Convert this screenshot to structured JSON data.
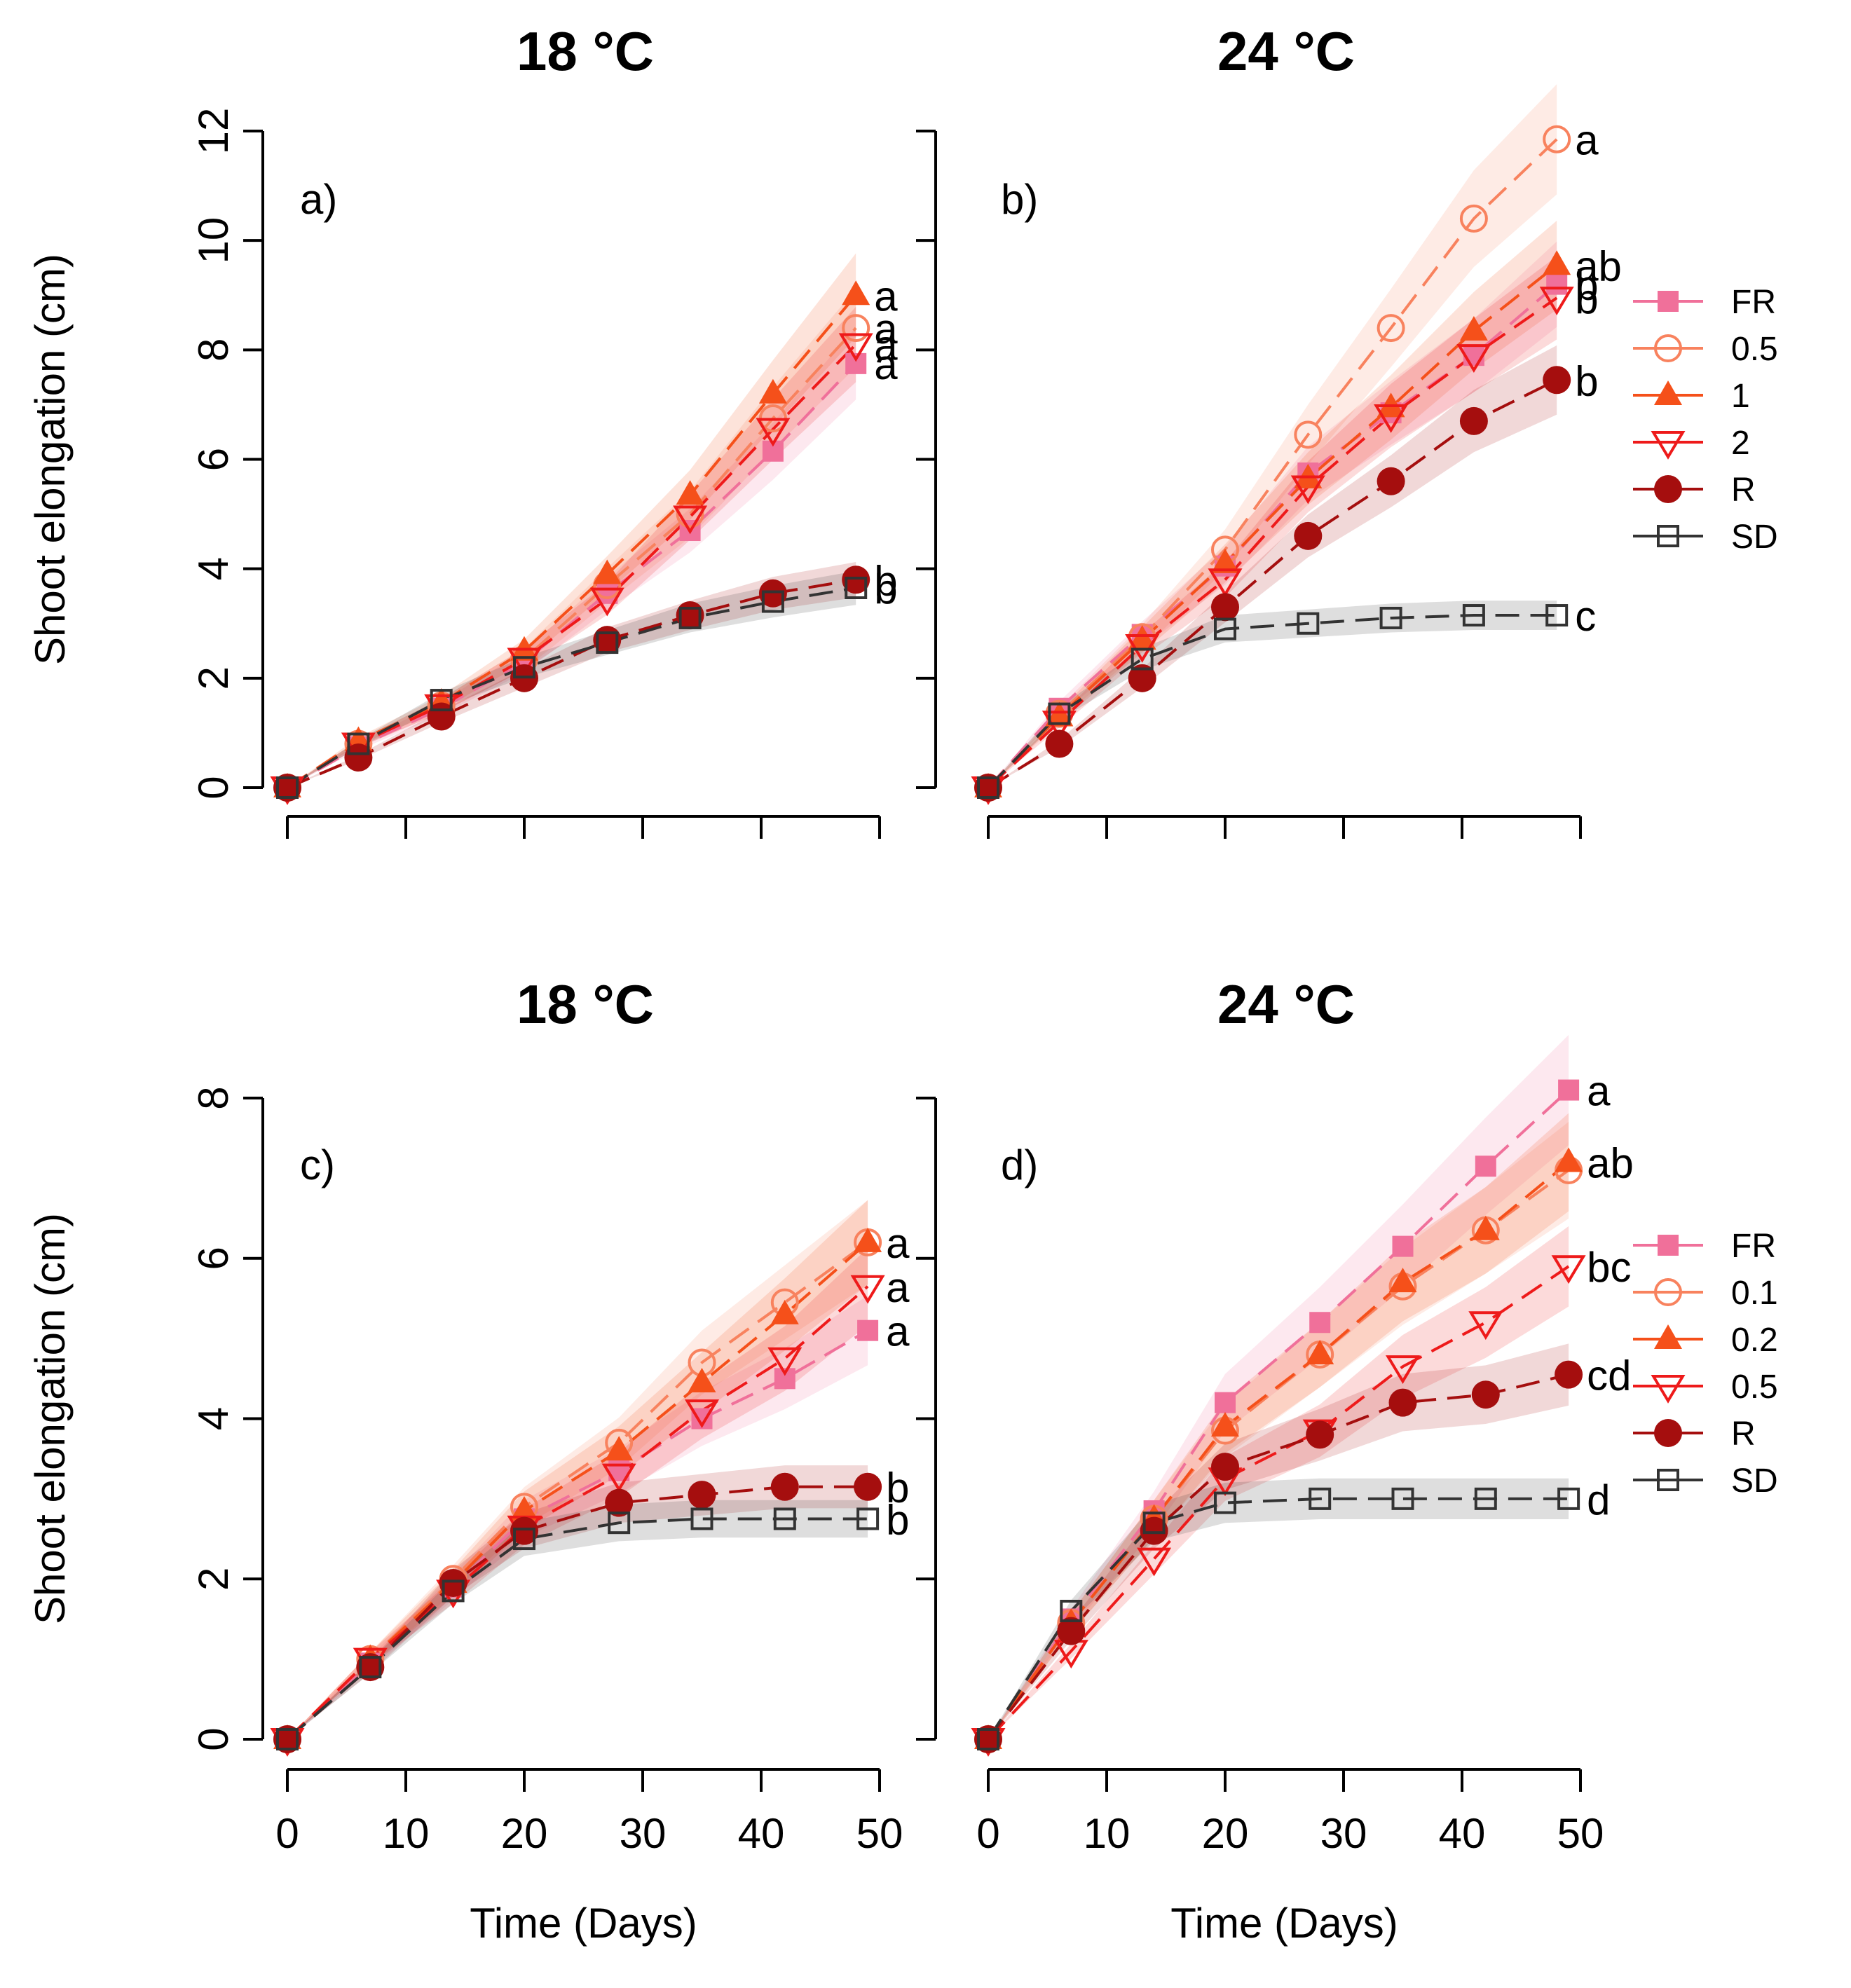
{
  "colors": {
    "FR": "#f0709a",
    "0.5": "#f8825e",
    "1": "#f5501a",
    "2": "#ee1a1a",
    "R": "#a50e0e",
    "SD": "#333333",
    "0.1": "#f8825e",
    "0.2": "#f5501a",
    "0.5_red": "#ee1a1a"
  },
  "chart_data": [
    {
      "type": "line",
      "panel": "a)",
      "title": "18 °C",
      "xlabel": "",
      "ylabel": "Shoot elongation (cm)",
      "xlim": [
        0,
        50
      ],
      "ylim": [
        0,
        12
      ],
      "yticks": [
        0,
        2,
        4,
        6,
        8,
        10,
        12
      ],
      "xticks": [
        0,
        10,
        20,
        30,
        40,
        50
      ],
      "x": [
        0,
        6,
        13,
        20,
        27,
        34,
        41,
        48
      ],
      "legend": false,
      "series": [
        {
          "name": "FR",
          "color": "#f0709a",
          "marker": "square-filled",
          "letter": "a",
          "values": [
            0,
            0.75,
            1.45,
            2.3,
            3.55,
            4.7,
            6.15,
            7.75
          ]
        },
        {
          "name": "0.5",
          "color": "#f8825e",
          "marker": "circle-open",
          "letter": "a",
          "values": [
            0,
            0.8,
            1.5,
            2.35,
            3.7,
            5.0,
            6.75,
            8.4
          ]
        },
        {
          "name": "1",
          "color": "#f5501a",
          "marker": "triangle-filled",
          "letter": "a",
          "values": [
            0,
            0.85,
            1.55,
            2.5,
            3.9,
            5.35,
            7.2,
            9.0
          ]
        },
        {
          "name": "2",
          "color": "#ee1a1a",
          "marker": "triangle-down-open",
          "letter": "a",
          "values": [
            0,
            0.8,
            1.5,
            2.35,
            3.45,
            4.95,
            6.55,
            8.1
          ]
        },
        {
          "name": "R",
          "color": "#a50e0e",
          "marker": "circle-filled",
          "letter": "b",
          "values": [
            0,
            0.55,
            1.3,
            2.0,
            2.7,
            3.15,
            3.55,
            3.8
          ]
        },
        {
          "name": "SD",
          "color": "#333333",
          "marker": "square-open",
          "letter": "b",
          "values": [
            0,
            0.8,
            1.6,
            2.2,
            2.65,
            3.1,
            3.4,
            3.65
          ]
        }
      ]
    },
    {
      "type": "line",
      "panel": "b)",
      "title": "24 °C",
      "xlabel": "",
      "ylabel": "",
      "xlim": [
        0,
        50
      ],
      "ylim": [
        0,
        12
      ],
      "yticks": [
        0,
        2,
        4,
        6,
        8,
        10,
        12
      ],
      "xticks": [
        0,
        10,
        20,
        30,
        40,
        50
      ],
      "x": [
        0,
        6,
        13,
        20,
        27,
        34,
        41,
        48
      ],
      "legend": true,
      "series": [
        {
          "name": "FR",
          "color": "#f0709a",
          "marker": "square-filled",
          "letter": "b",
          "values": [
            0,
            1.45,
            2.8,
            4.05,
            5.75,
            6.85,
            7.9,
            9.2
          ]
        },
        {
          "name": "0.5",
          "color": "#f8825e",
          "marker": "circle-open",
          "letter": "a",
          "values": [
            0,
            1.35,
            2.75,
            4.35,
            6.45,
            8.4,
            10.4,
            11.85
          ]
        },
        {
          "name": "1",
          "color": "#f5501a",
          "marker": "triangle-filled",
          "letter": "ab",
          "values": [
            0,
            1.3,
            2.7,
            4.1,
            5.65,
            6.95,
            8.35,
            9.55
          ]
        },
        {
          "name": "2",
          "color": "#ee1a1a",
          "marker": "triangle-down-open",
          "letter": "b",
          "values": [
            0,
            1.2,
            2.6,
            3.8,
            5.5,
            6.8,
            7.9,
            8.95
          ]
        },
        {
          "name": "R",
          "color": "#a50e0e",
          "marker": "circle-filled",
          "letter": "b",
          "values": [
            0,
            0.8,
            2.0,
            3.3,
            4.6,
            5.6,
            6.7,
            7.45
          ]
        },
        {
          "name": "SD",
          "color": "#333333",
          "marker": "square-open",
          "letter": "c",
          "values": [
            0,
            1.35,
            2.35,
            2.9,
            3.0,
            3.1,
            3.15,
            3.15
          ]
        }
      ]
    },
    {
      "type": "line",
      "panel": "c)",
      "title": "18 °C",
      "xlabel": "Time (Days)",
      "ylabel": "Shoot elongation (cm)",
      "xlim": [
        0,
        50
      ],
      "ylim": [
        0,
        8
      ],
      "yticks": [
        0,
        2,
        4,
        6,
        8
      ],
      "xticks": [
        0,
        10,
        20,
        30,
        40,
        50
      ],
      "x": [
        0,
        7,
        14,
        20,
        28,
        35,
        42,
        49
      ],
      "legend": false,
      "series": [
        {
          "name": "FR",
          "color": "#f0709a",
          "marker": "square-filled",
          "letter": "a",
          "values": [
            0,
            0.95,
            1.9,
            2.75,
            3.35,
            4.0,
            4.5,
            5.1
          ]
        },
        {
          "name": "0.1",
          "color": "#f8825e",
          "marker": "circle-open",
          "letter": "",
          "values": [
            0,
            1.0,
            2.0,
            2.9,
            3.7,
            4.7,
            5.45,
            6.2
          ]
        },
        {
          "name": "0.2",
          "color": "#f5501a",
          "marker": "triangle-filled",
          "letter": "a",
          "values": [
            0,
            1.0,
            1.95,
            2.85,
            3.6,
            4.45,
            5.3,
            6.2
          ]
        },
        {
          "name": "0.5",
          "color": "#ee1a1a",
          "marker": "triangle-down-open",
          "letter": "a",
          "values": [
            0,
            1.0,
            1.85,
            2.65,
            3.3,
            4.1,
            4.75,
            5.65
          ]
        },
        {
          "name": "R",
          "color": "#a50e0e",
          "marker": "circle-filled",
          "letter": "b",
          "values": [
            0,
            0.9,
            1.95,
            2.6,
            2.95,
            3.05,
            3.15,
            3.15
          ]
        },
        {
          "name": "SD",
          "color": "#333333",
          "marker": "square-open",
          "letter": "b",
          "values": [
            0,
            0.9,
            1.85,
            2.5,
            2.7,
            2.75,
            2.75,
            2.75
          ]
        }
      ]
    },
    {
      "type": "line",
      "panel": "d)",
      "title": "24 °C",
      "xlabel": "Time (Days)",
      "ylabel": "",
      "xlim": [
        0,
        50
      ],
      "ylim": [
        0,
        8
      ],
      "yticks": [
        0,
        2,
        4,
        6,
        8
      ],
      "xticks": [
        0,
        10,
        20,
        30,
        40,
        50
      ],
      "x": [
        0,
        7,
        14,
        20,
        28,
        35,
        42,
        49
      ],
      "legend": true,
      "series": [
        {
          "name": "FR",
          "color": "#f0709a",
          "marker": "square-filled",
          "letter": "a",
          "values": [
            0,
            1.5,
            2.85,
            4.2,
            5.2,
            6.15,
            7.15,
            8.1
          ]
        },
        {
          "name": "0.1",
          "color": "#f8825e",
          "marker": "circle-open",
          "letter": "",
          "values": [
            0,
            1.45,
            2.75,
            3.85,
            4.8,
            5.65,
            6.35,
            7.1
          ]
        },
        {
          "name": "0.2",
          "color": "#f5501a",
          "marker": "triangle-filled",
          "letter": "ab",
          "values": [
            0,
            1.45,
            2.75,
            3.9,
            4.8,
            5.7,
            6.35,
            7.2
          ]
        },
        {
          "name": "0.5",
          "color": "#ee1a1a",
          "marker": "triangle-down-open",
          "letter": "bc",
          "values": [
            0,
            1.1,
            2.25,
            3.25,
            3.85,
            4.65,
            5.2,
            5.9
          ]
        },
        {
          "name": "R",
          "color": "#a50e0e",
          "marker": "circle-filled",
          "letter": "cd",
          "values": [
            0,
            1.35,
            2.6,
            3.4,
            3.8,
            4.2,
            4.3,
            4.55
          ]
        },
        {
          "name": "SD",
          "color": "#333333",
          "marker": "square-open",
          "letter": "d",
          "values": [
            0,
            1.6,
            2.7,
            2.95,
            3.0,
            3.0,
            3.0,
            3.0
          ]
        }
      ]
    }
  ]
}
